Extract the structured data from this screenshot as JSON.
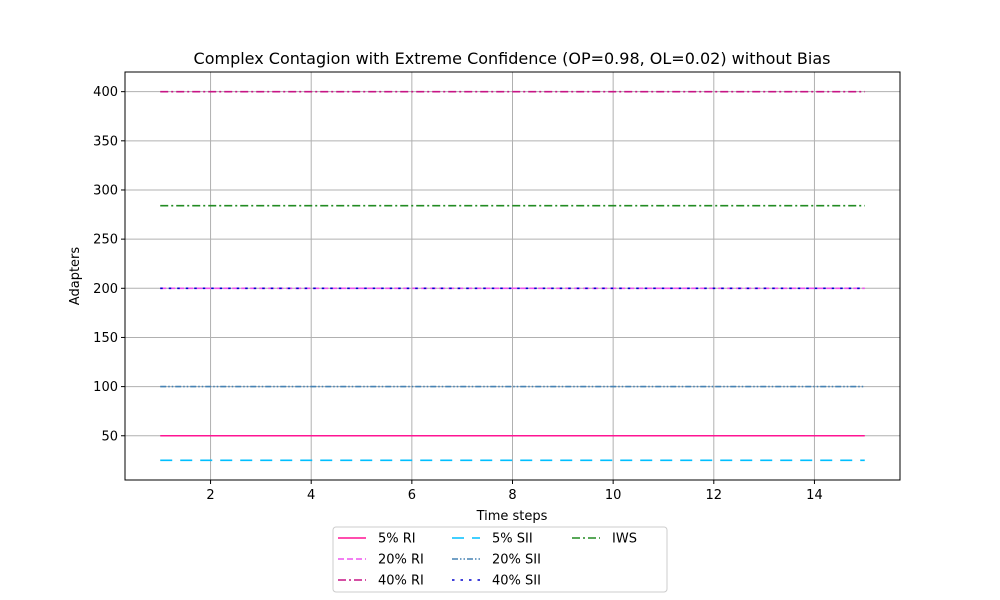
{
  "chart_data": {
    "type": "line",
    "title": "Complex Contagion with Extreme Confidence (OP=0.98, OL=0.02) without Bias",
    "xlabel": "Time steps",
    "ylabel": "Adapters",
    "xlim": [
      0.3,
      15.7
    ],
    "ylim": [
      5,
      420
    ],
    "xticks": [
      2,
      4,
      6,
      8,
      10,
      12,
      14
    ],
    "yticks": [
      50,
      100,
      150,
      200,
      250,
      300,
      350,
      400
    ],
    "grid": true,
    "legend_position": "bottom-center",
    "x": [
      1,
      2,
      3,
      4,
      5,
      6,
      7,
      8,
      9,
      10,
      11,
      12,
      13,
      14,
      15
    ],
    "series": [
      {
        "name": "5% RI",
        "color": "#ff1493",
        "dash": "solid",
        "values": [
          50,
          50,
          50,
          50,
          50,
          50,
          50,
          50,
          50,
          50,
          50,
          50,
          50,
          50,
          50
        ]
      },
      {
        "name": "20% RI",
        "color": "#ee55ee",
        "dash": "dashed",
        "values": [
          200,
          200,
          200,
          200,
          200,
          200,
          200,
          200,
          200,
          200,
          200,
          200,
          200,
          200,
          200
        ]
      },
      {
        "name": "40% RI",
        "color": "#c71585",
        "dash": "dashdot",
        "values": [
          400,
          400,
          400,
          400,
          400,
          400,
          400,
          400,
          400,
          400,
          400,
          400,
          400,
          400,
          400
        ]
      },
      {
        "name": "5% SII",
        "color": "#00bfff",
        "dash": "longdash",
        "values": [
          25,
          25,
          25,
          25,
          25,
          25,
          25,
          25,
          25,
          25,
          25,
          25,
          25,
          25,
          25
        ]
      },
      {
        "name": "20% SII",
        "color": "#4682b4",
        "dash": "dashdotdot",
        "values": [
          100,
          100,
          100,
          100,
          100,
          100,
          100,
          100,
          100,
          100,
          100,
          100,
          100,
          100,
          100
        ]
      },
      {
        "name": "40% SII",
        "color": "#0000cd",
        "dash": "dotted",
        "values": [
          200,
          200,
          200,
          200,
          200,
          200,
          200,
          200,
          200,
          200,
          200,
          200,
          200,
          200,
          200
        ]
      },
      {
        "name": "IWS",
        "color": "#228b22",
        "dash": "dashdot",
        "values": [
          284,
          284,
          284,
          284,
          284,
          284,
          284,
          284,
          284,
          284,
          284,
          284,
          284,
          284,
          284
        ]
      }
    ]
  }
}
